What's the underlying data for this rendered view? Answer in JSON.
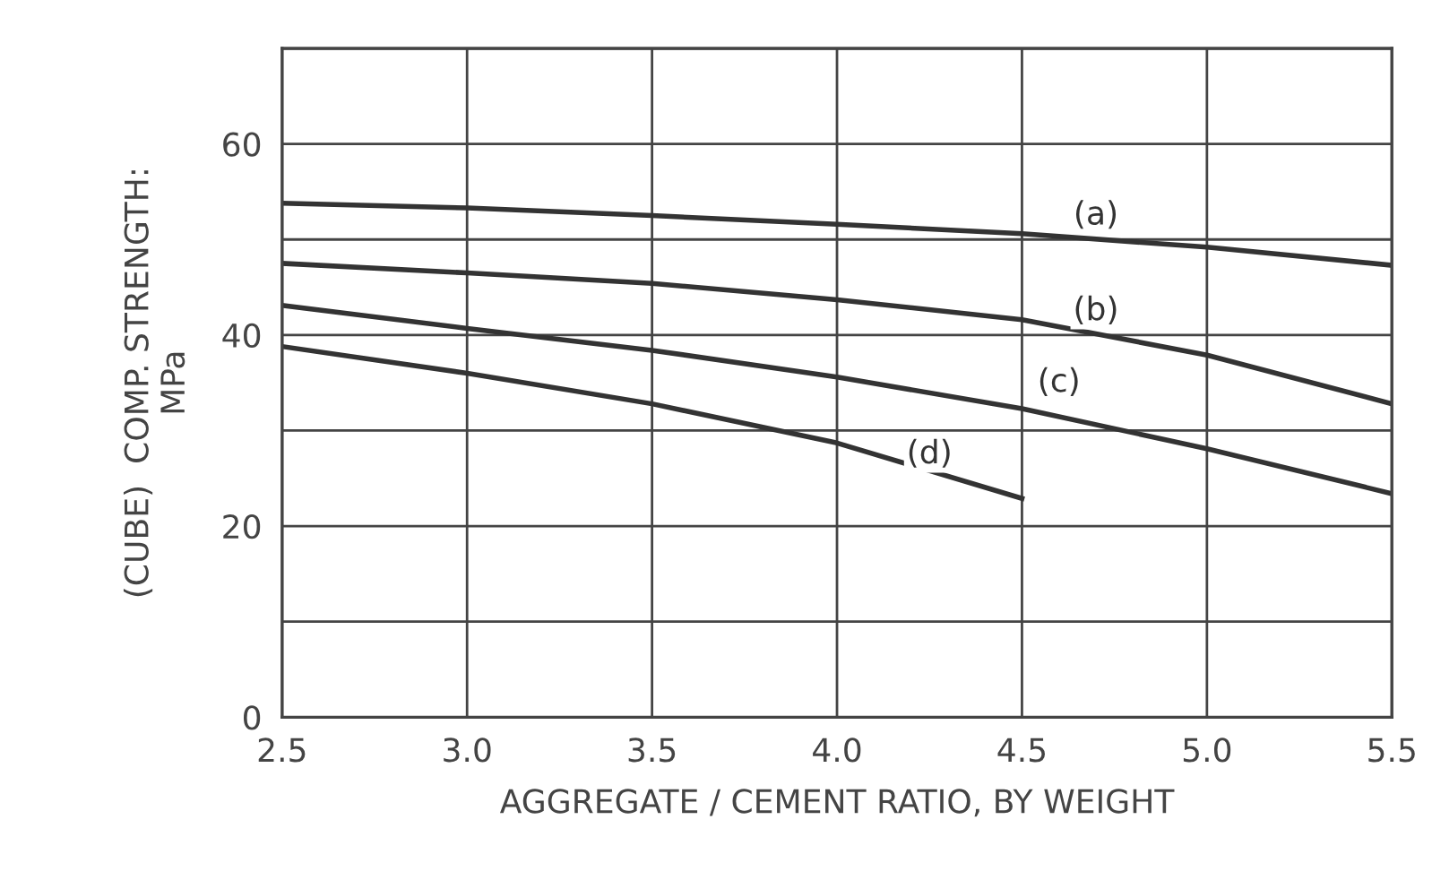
{
  "chart_data": {
    "type": "line",
    "xlabel": "AGGREGATE / CEMENT RATIO, BY WEIGHT",
    "ylabel": "(CUBE)  COMP. STRENGTH:\nMPa",
    "xlim": [
      2.5,
      5.5
    ],
    "xticks": [
      {
        "value": 2.5,
        "label": "2.5"
      },
      {
        "value": 3.0,
        "label": "3.0"
      },
      {
        "value": 3.5,
        "label": "3.5"
      },
      {
        "value": 4.0,
        "label": "4.0"
      },
      {
        "value": 4.5,
        "label": "4.5"
      },
      {
        "value": 5.0,
        "label": "5.0"
      },
      {
        "value": 5.5,
        "label": "5.5"
      }
    ],
    "ylim": [
      0,
      70
    ],
    "yticks": [
      0,
      {
        "value": 10,
        "label": null
      },
      20,
      {
        "value": 30,
        "label": null
      },
      40,
      {
        "value": 50,
        "label": null
      },
      60,
      {
        "value": 70,
        "label": null
      }
    ],
    "grid": true,
    "line_style": "solid",
    "marker": "none",
    "series": [
      {
        "color": "#333333",
        "x": [
          2.5,
          3.0,
          3.5,
          4.0,
          4.5,
          5.0,
          5.5
        ],
        "values": [
          53.8,
          53.3,
          52.5,
          51.6,
          50.6,
          49.2,
          47.3
        ]
      },
      {
        "color": "#333333",
        "x": [
          2.5,
          3.0,
          3.5,
          4.0,
          4.5,
          5.0,
          5.5
        ],
        "values": [
          47.5,
          46.5,
          45.4,
          43.7,
          41.6,
          37.9,
          32.8
        ]
      },
      {
        "color": "#333333",
        "x": [
          2.5,
          3.0,
          3.5,
          4.0,
          4.5,
          5.0,
          5.5
        ],
        "values": [
          43.1,
          40.7,
          38.4,
          35.6,
          32.3,
          28.1,
          23.4
        ]
      },
      {
        "color": "#333333",
        "x": [
          2.5,
          3.0,
          3.5,
          4.0,
          4.5
        ],
        "values": [
          38.8,
          36.0,
          32.8,
          28.7,
          22.9
        ]
      }
    ],
    "annotations": [
      {
        "text": "(a)",
        "x": 4.7,
        "y": 52.5
      },
      {
        "text": "(b)",
        "x": 4.7,
        "y": 42.5
      },
      {
        "text": "(c)",
        "x": 4.6,
        "y": 35
      },
      {
        "text": "(d)",
        "x": 4.25,
        "y": 27.5
      }
    ]
  }
}
